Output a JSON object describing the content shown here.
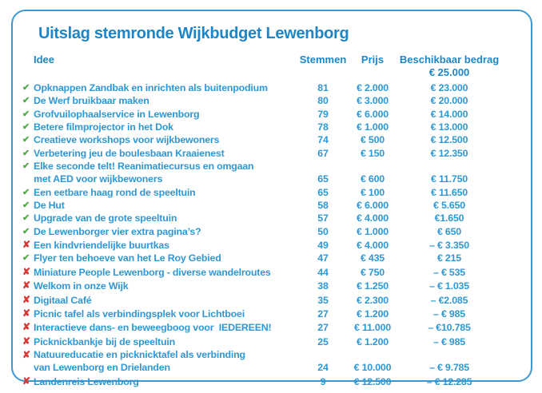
{
  "title": "Uitslag stemronde Wijkbudget Lewenborg",
  "table": {
    "headers": {
      "idea": "Idee",
      "votes": "Stemmen",
      "price": "Prijs",
      "available": "Beschikbaar bedrag"
    },
    "starting_budget": "€ 25.000",
    "rows": [
      {
        "status": "check",
        "idea": "Opknappen Zandbak en inrichten als buitenpodium",
        "votes": "81",
        "price": "€ 2.000",
        "available": "€ 23.000"
      },
      {
        "status": "check",
        "idea": "De Werf bruikbaar maken",
        "votes": "80",
        "price": "€ 3.000",
        "available": "€ 20.000"
      },
      {
        "status": "check",
        "idea": "Grofvuilophaalservice in Lewenborg",
        "votes": "79",
        "price": "€ 6.000",
        "available": "€ 14.000"
      },
      {
        "status": "check",
        "idea": "Betere filmprojector in het Dok",
        "votes": "78",
        "price": "€ 1.000",
        "available": "€ 13.000"
      },
      {
        "status": "check",
        "idea": "Creatieve workshops voor wijkbewoners",
        "votes": "74",
        "price": "€ 500",
        "available": "€ 12.500"
      },
      {
        "status": "check",
        "idea": "Verbetering jeu de boulesbaan Kraaienest",
        "votes": "67",
        "price": "€ 150",
        "available": "€ 12.350"
      },
      {
        "status": "check",
        "idea": "Elke seconde telt! Reanimatiecursus en omgaan\nmet AED voor wijkbewoners",
        "votes": "65",
        "price": "€ 600",
        "available": "€ 11.750"
      },
      {
        "status": "check",
        "idea": "Een eetbare haag rond de speeltuin",
        "votes": "65",
        "price": "€ 100",
        "available": "€ 11.650"
      },
      {
        "status": "check",
        "idea": "De Hut",
        "votes": "58",
        "price": "€ 6.000",
        "available": "€ 5.650"
      },
      {
        "status": "check",
        "idea": "Upgrade van de grote speeltuin",
        "votes": "57",
        "price": "€ 4.000",
        "available": "€1.650"
      },
      {
        "status": "check",
        "idea": "De Lewenborger vier extra pagina’s?",
        "votes": "50",
        "price": "€ 1.000",
        "available": "€ 650"
      },
      {
        "status": "cross",
        "idea": "Een kindvriendelijke buurtkas",
        "votes": "49",
        "price": "€ 4.000",
        "available": "– € 3.350"
      },
      {
        "status": "check",
        "idea": "Flyer ten behoeve van het Le Roy Gebied",
        "votes": "47",
        "price": "€ 435",
        "available": "€ 215"
      },
      {
        "status": "cross",
        "idea": "Miniature People Lewenborg - diverse wandelroutes",
        "votes": "44",
        "price": "€ 750",
        "available": "– € 535"
      },
      {
        "status": "cross",
        "idea": "Welkom in onze Wijk",
        "votes": "38",
        "price": "€ 1.250",
        "available": "– € 1.035"
      },
      {
        "status": "cross",
        "idea": "Digitaal Café",
        "votes": "35",
        "price": "€ 2.300",
        "available": "– €2.085"
      },
      {
        "status": "cross",
        "idea": "Picnic tafel als verbindingsplek voor Lichtboei",
        "votes": "27",
        "price": "€ 1.200",
        "available": "– € 985"
      },
      {
        "status": "cross",
        "idea": "Interactieve dans- en beweegboog voor  IEDEREEN!",
        "votes": "27",
        "price": "€ 11.000",
        "available": "– €10.785"
      },
      {
        "status": "cross",
        "idea": "Picknickbankje bij de speeltuin",
        "votes": "25",
        "price": "€ 1.200",
        "available": "– € 985"
      },
      {
        "status": "cross",
        "idea": "Natuureducatie en picknicktafel als verbinding\nvan Lewenborg en Drielanden",
        "votes": "24",
        "price": "€ 10.000",
        "available": "– € 9.785"
      },
      {
        "status": "cross",
        "idea": "Landenreis Lewenborg",
        "votes": "9",
        "price": "€ 12.500",
        "available": "– € 12.285"
      }
    ]
  },
  "icons": {
    "check": "green check mark — idea funded",
    "cross": "red cross — idea not funded"
  },
  "colors": {
    "accent_blue": "#1c86c8",
    "row_blue": "#2f98d4",
    "border_blue": "#3f97d0",
    "check_green": "#4fa945",
    "cross_red": "#d93636"
  }
}
